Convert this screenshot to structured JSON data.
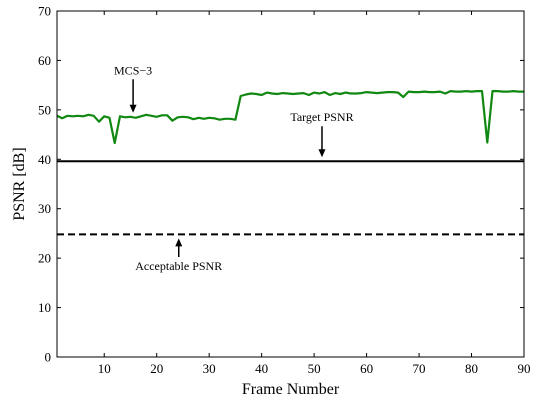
{
  "chart_data": {
    "type": "line",
    "xlabel": "Frame Number",
    "ylabel": "PSNR [dB]",
    "xlim": [
      1,
      90
    ],
    "ylim": [
      0,
      70
    ],
    "xticks": [
      10,
      20,
      30,
      40,
      50,
      60,
      70,
      80,
      90
    ],
    "yticks": [
      0,
      10,
      20,
      30,
      40,
      50,
      60,
      70
    ],
    "grid": false,
    "series": [
      {
        "name": "MCS-3",
        "color": "#118811",
        "style": "solid",
        "x": [
          1,
          2,
          3,
          4,
          5,
          6,
          7,
          8,
          9,
          10,
          11,
          12,
          13,
          14,
          15,
          16,
          17,
          18,
          19,
          20,
          21,
          22,
          23,
          24,
          25,
          26,
          27,
          28,
          29,
          30,
          31,
          32,
          33,
          34,
          35,
          36,
          37,
          38,
          39,
          40,
          41,
          42,
          43,
          44,
          45,
          46,
          47,
          48,
          49,
          50,
          51,
          52,
          53,
          54,
          55,
          56,
          57,
          58,
          59,
          60,
          61,
          62,
          63,
          64,
          65,
          66,
          67,
          68,
          69,
          70,
          71,
          72,
          73,
          74,
          75,
          76,
          77,
          78,
          79,
          80,
          81,
          82,
          83,
          84,
          85,
          86,
          87,
          88,
          89,
          90
        ],
        "y": [
          48.8,
          48.3,
          48.8,
          48.7,
          48.8,
          48.7,
          49.0,
          48.8,
          47.6,
          48.7,
          48.4,
          43.3,
          48.7,
          48.5,
          48.6,
          48.4,
          48.7,
          49.0,
          48.8,
          48.6,
          48.9,
          48.9,
          47.8,
          48.5,
          48.6,
          48.5,
          48.1,
          48.4,
          48.2,
          48.4,
          48.3,
          48.0,
          48.2,
          48.2,
          48.0,
          52.8,
          53.1,
          53.3,
          53.2,
          53.0,
          53.5,
          53.3,
          53.2,
          53.4,
          53.3,
          53.2,
          53.3,
          53.4,
          53.0,
          53.5,
          53.3,
          53.6,
          53.0,
          53.4,
          53.2,
          53.5,
          53.3,
          53.3,
          53.4,
          53.6,
          53.5,
          53.4,
          53.5,
          53.6,
          53.6,
          53.5,
          52.6,
          53.7,
          53.6,
          53.6,
          53.7,
          53.6,
          53.6,
          53.7,
          53.3,
          53.8,
          53.7,
          53.7,
          53.8,
          53.7,
          53.8,
          53.8,
          43.4,
          53.8,
          53.8,
          53.7,
          53.7,
          53.8,
          53.7,
          53.7
        ]
      },
      {
        "name": "Target PSNR",
        "color": "#000000",
        "style": "solid",
        "x": [
          1,
          90
        ],
        "y": [
          39.6,
          39.6
        ]
      },
      {
        "name": "Acceptable PSNR",
        "color": "#000000",
        "style": "dashed",
        "x": [
          1,
          90
        ],
        "y": [
          24.8,
          24.8
        ]
      }
    ],
    "annotations": [
      {
        "text": "MCS−3",
        "x": 15.5,
        "y": 48.6,
        "label_x": 15.5,
        "label_y": 57.2,
        "placement": "above"
      },
      {
        "text": "Target PSNR",
        "x": 51.5,
        "y": 39.6,
        "label_x": 51.5,
        "label_y": 47.7,
        "placement": "above"
      },
      {
        "text": "Acceptable PSNR",
        "x": 24.2,
        "y": 24.8,
        "label_x": 24.2,
        "label_y": 17.6,
        "placement": "below"
      }
    ]
  }
}
